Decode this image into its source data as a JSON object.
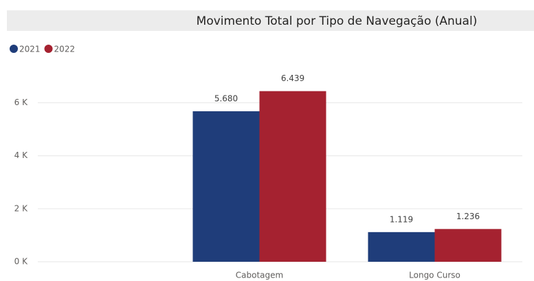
{
  "chart_data": {
    "type": "bar",
    "title": "Movimento Total por Tipo de Navegação (Anual)",
    "categories": [
      null,
      "Cabotagem",
      "Longo Curso"
    ],
    "series": [
      {
        "name": "2021",
        "color": "#1f3d7a",
        "values": [
          null,
          5680,
          1119
        ],
        "value_labels": [
          null,
          "5.680",
          "1.119"
        ]
      },
      {
        "name": "2022",
        "color": "#a52230",
        "values": [
          null,
          6439,
          1236
        ],
        "value_labels": [
          null,
          "6.439",
          "1.236"
        ]
      }
    ],
    "ylim": [
      0,
      7000
    ],
    "yticks": [
      {
        "value": 0,
        "label": "0 K"
      },
      {
        "value": 2000,
        "label": "2 K"
      },
      {
        "value": 4000,
        "label": "4 K"
      },
      {
        "value": 6000,
        "label": "6 K"
      }
    ],
    "grid": true,
    "legend": "top-left"
  }
}
